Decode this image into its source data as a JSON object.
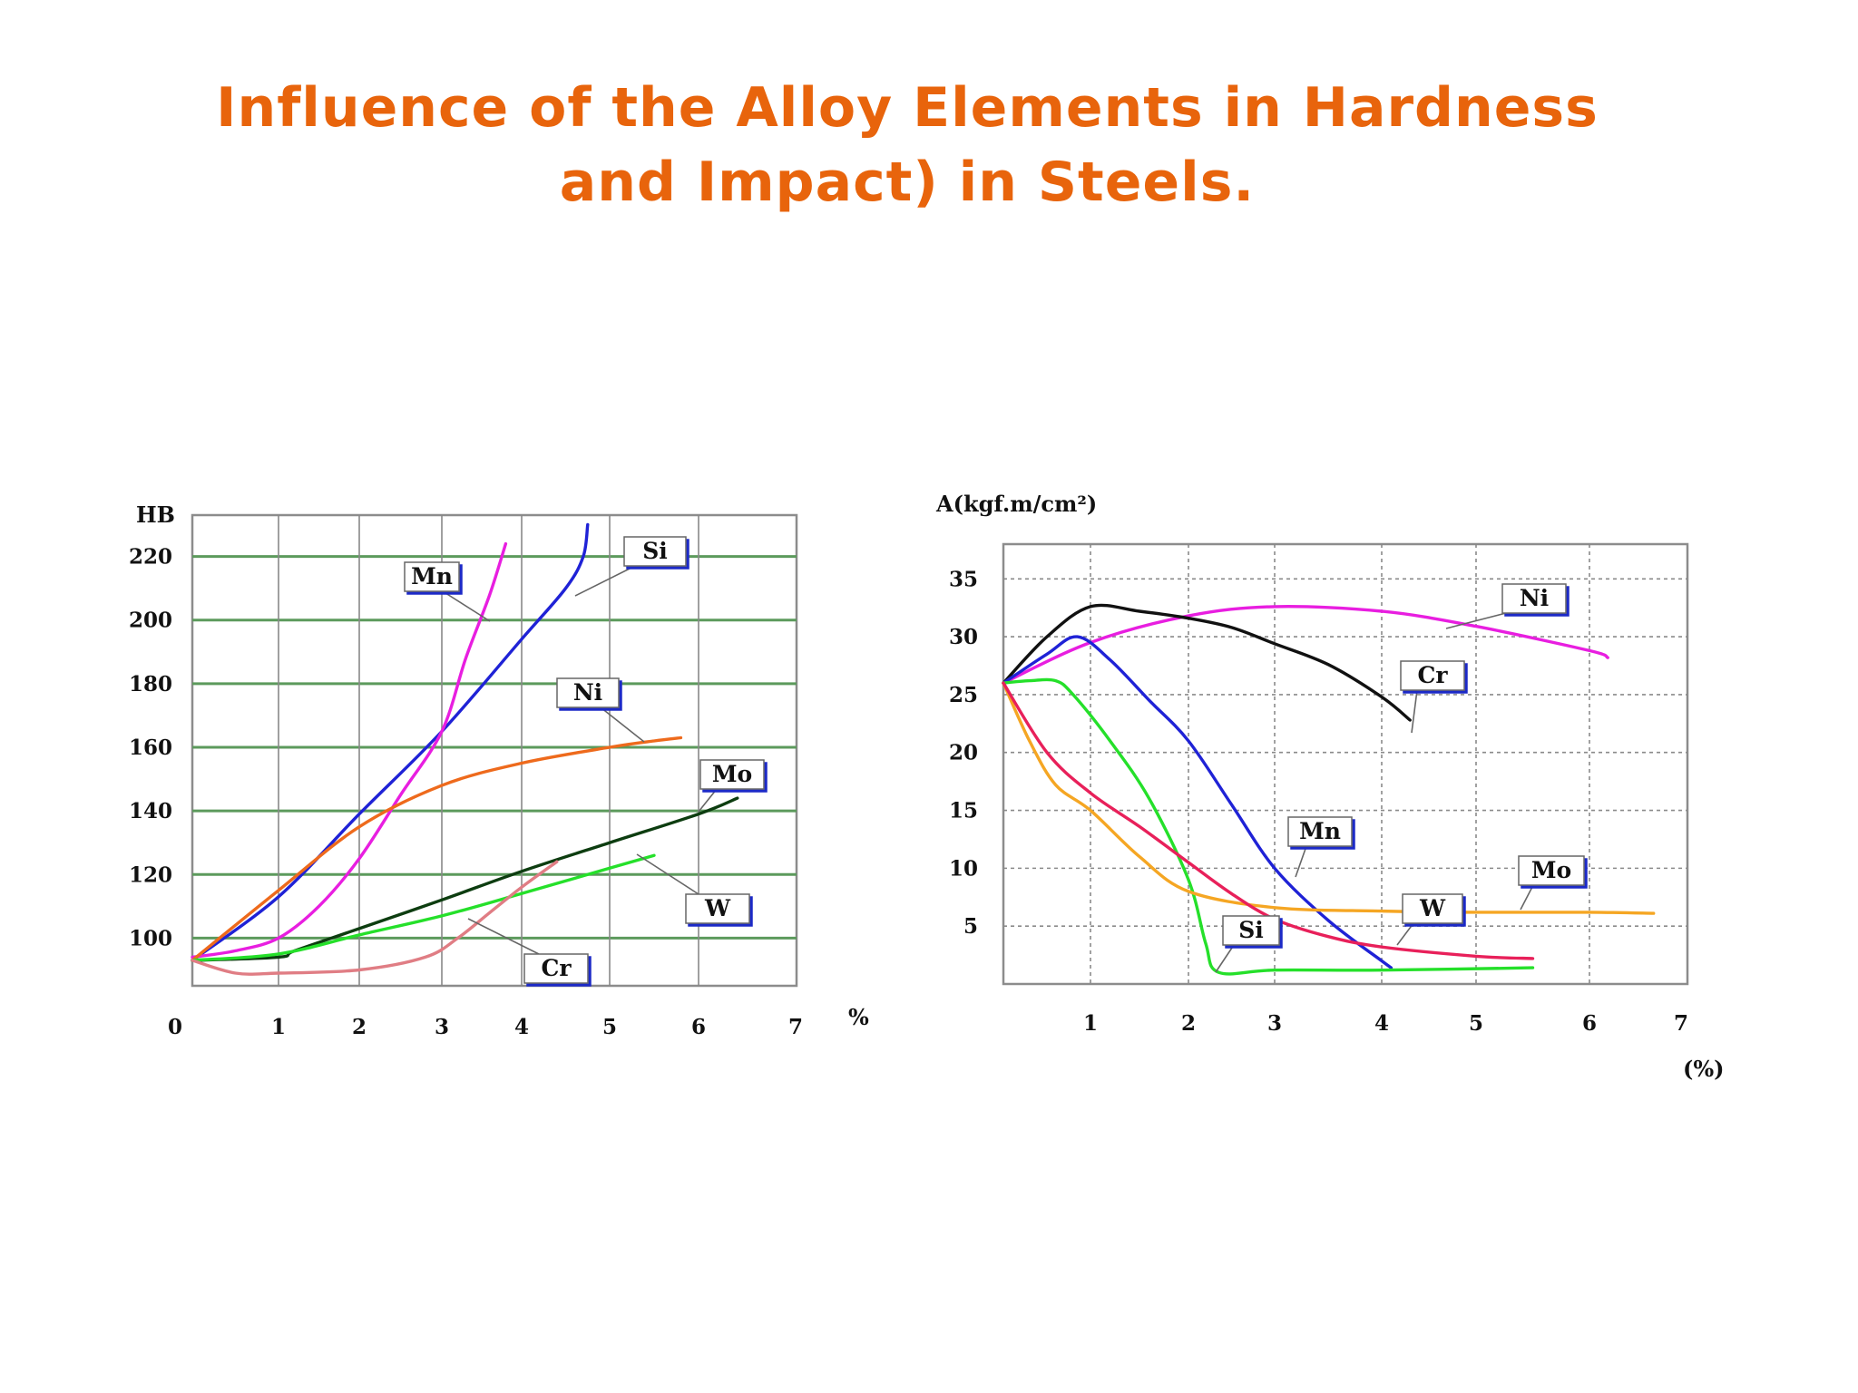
{
  "title": {
    "line1": "Influence of the Alloy Elements in Hardness",
    "line2": "and Impact) in Steels.",
    "color": "#e8640c"
  },
  "chart_data": [
    {
      "type": "line",
      "title": "",
      "ylabel": "HB",
      "xlabel": "%",
      "grid": true,
      "xlim": [
        0,
        7
      ],
      "ylim": [
        85,
        233
      ],
      "x_ticks": [
        "0",
        "1",
        "2",
        "3",
        "4",
        "5",
        "6",
        "7"
      ],
      "y_ticks": [
        "100",
        "120",
        "140",
        "160",
        "180",
        "200",
        "220"
      ],
      "series": [
        {
          "name": "Si",
          "color": "#1f22d6",
          "x": [
            0,
            1,
            2,
            3,
            4,
            4.5,
            4.7,
            4.75
          ],
          "y": [
            93,
            113,
            139,
            165,
            194,
            210,
            220,
            230
          ]
        },
        {
          "name": "Mn",
          "color": "#e81ee0",
          "x": [
            0,
            0.5,
            1,
            1.5,
            2,
            2.5,
            3,
            3.3,
            3.6,
            3.8
          ],
          "y": [
            94,
            96,
            100,
            110,
            125,
            145,
            165,
            188,
            208,
            224
          ]
        },
        {
          "name": "Ni",
          "color": "#ee6a1c",
          "x": [
            0,
            1,
            2,
            3,
            4,
            5,
            5.5,
            5.8
          ],
          "y": [
            93,
            115,
            135,
            148,
            155,
            160,
            162,
            163
          ]
        },
        {
          "name": "Mo",
          "color": "#0d3d10",
          "x": [
            0,
            1,
            1.2,
            2,
            3,
            4,
            5,
            6,
            6.4
          ],
          "y": [
            93,
            94,
            96,
            103,
            112,
            121,
            130,
            139,
            144
          ]
        },
        {
          "name": "W",
          "color": "#25e02a",
          "x": [
            0,
            1,
            2,
            3,
            4,
            5,
            5.5
          ],
          "y": [
            93,
            95,
            101,
            107,
            114,
            122,
            126
          ]
        },
        {
          "name": "Cr",
          "color": "#e07d84",
          "x": [
            0,
            0.5,
            1,
            2,
            2.8,
            3.2,
            3.6,
            4.0,
            4.4
          ],
          "y": [
            93,
            89,
            89,
            90,
            94,
            100,
            108,
            116,
            124
          ]
        }
      ],
      "labels": [
        "Mn",
        "Si",
        "Ni",
        "Mo",
        "W",
        "Cr"
      ]
    },
    {
      "type": "line",
      "title": "",
      "ylabel": "A(kgf.m/cm²)",
      "xlabel": "(%)",
      "grid": true,
      "xlim": [
        0,
        7
      ],
      "ylim": [
        0,
        38
      ],
      "x_ticks": [
        "1",
        "2",
        "3",
        "4",
        "5",
        "6",
        "7"
      ],
      "y_ticks": [
        "5",
        "10",
        "15",
        "20",
        "25",
        "30",
        "35"
      ],
      "series": [
        {
          "name": "Ni",
          "color": "#e81ee0",
          "x": [
            0,
            1,
            2,
            3,
            4,
            5,
            6,
            6.2
          ],
          "y": [
            26,
            29.5,
            31.8,
            32.6,
            32.2,
            30.9,
            28.8,
            28.2
          ]
        },
        {
          "name": "Cr",
          "color": "#111111",
          "x": [
            0,
            0.5,
            1,
            1.5,
            2,
            2.5,
            3,
            3.5,
            4,
            4.3
          ],
          "y": [
            26,
            30,
            32.6,
            32.2,
            31.6,
            30.8,
            29.4,
            27.6,
            24.8,
            22.8
          ]
        },
        {
          "name": "Mn",
          "color": "#1f22d6",
          "x": [
            0,
            0.5,
            0.85,
            1.2,
            1.6,
            2,
            2.5,
            3,
            3.5,
            4,
            4.1
          ],
          "y": [
            26,
            28.5,
            30,
            28,
            24.5,
            21,
            15.5,
            10,
            5.5,
            2,
            1.4
          ]
        },
        {
          "name": "Si",
          "color": "#25e02a",
          "x": [
            0,
            0.3,
            0.6,
            0.8,
            1.2,
            1.6,
            2.0,
            2.2,
            2.35,
            3,
            4,
            5.5
          ],
          "y": [
            26,
            26.2,
            26.2,
            25,
            21,
            16,
            9,
            3.5,
            1.0,
            1.2,
            1.2,
            1.4
          ]
        },
        {
          "name": "Mo",
          "color": "#f5a623",
          "x": [
            0,
            0.3,
            0.6,
            1,
            1.5,
            2,
            3,
            4,
            5,
            6,
            6.7
          ],
          "y": [
            26,
            21,
            17.2,
            15,
            11,
            8,
            6.6,
            6.3,
            6.2,
            6.2,
            6.1
          ]
        },
        {
          "name": "W",
          "color": "#e8205a",
          "x": [
            0,
            0.5,
            1,
            1.5,
            2,
            2.5,
            3,
            3.5,
            4,
            5,
            5.5
          ],
          "y": [
            26,
            20,
            16.5,
            13.6,
            10.5,
            7.8,
            5.6,
            4.1,
            3.2,
            2.4,
            2.2
          ]
        }
      ],
      "labels": [
        "Ni",
        "Cr",
        "Mn",
        "Mo",
        "W",
        "Si"
      ]
    }
  ]
}
